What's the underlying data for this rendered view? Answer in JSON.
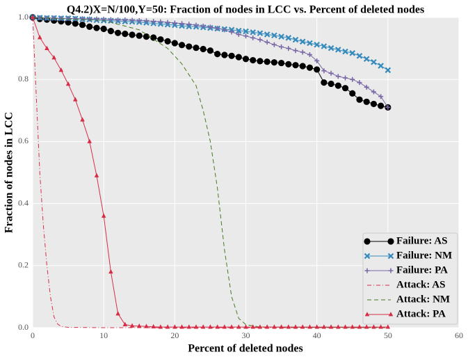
{
  "chart_data": {
    "type": "line",
    "title": "Q4.2)X=N/100,Y=50: Fraction of nodes in LCC vs. Percent of deleted nodes",
    "x_label": "Percent of deleted nodes",
    "y_label": "Fraction of nodes in LCC",
    "xlim": [
      0,
      60
    ],
    "xticks": [
      0,
      10,
      20,
      30,
      40,
      50,
      60
    ],
    "ylim": [
      0,
      1
    ],
    "yticks": [
      {
        "value": 0,
        "label": "0.0"
      },
      0.2,
      0.4,
      0.6,
      0.8,
      {
        "value": 1,
        "label": "1.0"
      }
    ],
    "grid": true,
    "legend_position": "lower-right",
    "series": [
      {
        "name": "Failure: AS",
        "color": "#000000",
        "marker": "circle",
        "linestyle": "solid",
        "x": [
          0,
          1,
          2,
          3,
          4,
          5,
          6,
          7,
          8,
          9,
          10,
          11,
          12,
          13,
          14,
          15,
          16,
          17,
          18,
          19,
          20,
          21,
          22,
          23,
          24,
          25,
          26,
          27,
          28,
          29,
          30,
          31,
          32,
          33,
          34,
          35,
          36,
          37,
          38,
          39,
          40,
          41,
          42,
          43,
          44,
          45,
          46,
          47,
          48,
          49,
          50
        ],
        "values": [
          1.0,
          0.995,
          0.993,
          0.99,
          0.987,
          0.984,
          0.98,
          0.976,
          0.97,
          0.966,
          0.963,
          0.956,
          0.95,
          0.947,
          0.944,
          0.941,
          0.938,
          0.935,
          0.929,
          0.923,
          0.917,
          0.911,
          0.906,
          0.902,
          0.898,
          0.893,
          0.882,
          0.879,
          0.876,
          0.872,
          0.866,
          0.862,
          0.859,
          0.857,
          0.855,
          0.853,
          0.849,
          0.846,
          0.843,
          0.838,
          0.832,
          0.79,
          0.786,
          0.78,
          0.772,
          0.755,
          0.735,
          0.728,
          0.721,
          0.715,
          0.71
        ]
      },
      {
        "name": "Failure: NM",
        "color": "#348abd",
        "marker": "x",
        "linestyle": "solid",
        "x": [
          0,
          1,
          2,
          3,
          4,
          5,
          6,
          7,
          8,
          9,
          10,
          11,
          12,
          13,
          14,
          15,
          16,
          17,
          18,
          19,
          20,
          21,
          22,
          23,
          24,
          25,
          26,
          27,
          28,
          29,
          30,
          31,
          32,
          33,
          34,
          35,
          36,
          37,
          38,
          39,
          40,
          41,
          42,
          43,
          44,
          45,
          46,
          47,
          48,
          49,
          50
        ],
        "values": [
          1.0,
          0.999,
          0.998,
          0.998,
          0.997,
          0.997,
          0.996,
          0.994,
          0.993,
          0.991,
          0.99,
          0.989,
          0.988,
          0.987,
          0.986,
          0.985,
          0.983,
          0.981,
          0.979,
          0.977,
          0.975,
          0.973,
          0.971,
          0.97,
          0.968,
          0.966,
          0.964,
          0.962,
          0.96,
          0.957,
          0.955,
          0.952,
          0.949,
          0.945,
          0.942,
          0.938,
          0.934,
          0.928,
          0.922,
          0.917,
          0.912,
          0.907,
          0.901,
          0.896,
          0.89,
          0.885,
          0.876,
          0.866,
          0.856,
          0.844,
          0.83
        ]
      },
      {
        "name": "Failure: PA",
        "color": "#7a68a6",
        "marker": "plus",
        "linestyle": "solid",
        "x": [
          0,
          1,
          2,
          3,
          4,
          5,
          6,
          7,
          8,
          9,
          10,
          11,
          12,
          13,
          14,
          15,
          16,
          17,
          18,
          19,
          20,
          21,
          22,
          23,
          24,
          25,
          26,
          27,
          28,
          29,
          30,
          31,
          32,
          33,
          34,
          35,
          36,
          37,
          38,
          39,
          40,
          41,
          42,
          43,
          44,
          45,
          46,
          47,
          48,
          49,
          50
        ],
        "values": [
          1.0,
          0.999,
          0.998,
          0.998,
          0.997,
          0.997,
          0.996,
          0.996,
          0.995,
          0.995,
          0.994,
          0.993,
          0.992,
          0.992,
          0.991,
          0.99,
          0.989,
          0.987,
          0.986,
          0.984,
          0.982,
          0.98,
          0.978,
          0.975,
          0.972,
          0.969,
          0.965,
          0.96,
          0.953,
          0.945,
          0.94,
          0.934,
          0.928,
          0.92,
          0.912,
          0.905,
          0.9,
          0.893,
          0.888,
          0.88,
          0.86,
          0.828,
          0.82,
          0.81,
          0.805,
          0.8,
          0.79,
          0.775,
          0.76,
          0.745,
          0.71
        ]
      },
      {
        "name": "Attack: AS",
        "color": "#d62d47",
        "marker": "none",
        "linestyle": "dashdot",
        "x": [
          0,
          0.5,
          1,
          1.5,
          2,
          2.5,
          3,
          3.5,
          4,
          5,
          10,
          20,
          30,
          40,
          50
        ],
        "values": [
          1.0,
          0.75,
          0.5,
          0.33,
          0.2,
          0.1,
          0.035,
          0.012,
          0.004,
          0.001,
          0,
          0,
          0,
          0,
          0
        ]
      },
      {
        "name": "Attack: NM",
        "color": "#467821",
        "marker": "none",
        "linestyle": "dashed",
        "x": [
          0,
          10,
          15,
          19,
          21,
          23,
          24,
          25,
          26,
          27,
          28,
          29,
          30,
          32,
          50
        ],
        "values": [
          1.0,
          0.99,
          0.96,
          0.9,
          0.85,
          0.78,
          0.7,
          0.6,
          0.45,
          0.25,
          0.1,
          0.03,
          0.01,
          0.002,
          0
        ]
      },
      {
        "name": "Attack: PA",
        "color": "#d62d47",
        "marker": "triangle",
        "linestyle": "solid",
        "x": [
          0,
          1,
          2,
          3,
          4,
          5,
          6,
          7,
          8,
          9,
          10,
          11,
          12,
          13,
          14,
          15,
          16,
          17,
          18,
          19,
          20,
          21,
          22,
          23,
          24,
          25,
          26,
          27,
          28,
          29,
          30,
          31,
          32,
          33,
          34,
          35,
          36,
          37,
          38,
          39,
          40,
          41,
          42,
          43,
          44,
          45,
          46,
          47,
          48,
          49,
          50
        ],
        "values": [
          1.0,
          0.935,
          0.9,
          0.87,
          0.83,
          0.785,
          0.735,
          0.67,
          0.6,
          0.49,
          0.36,
          0.18,
          0.045,
          0.01,
          0.006,
          0.005,
          0.004,
          0.003,
          0.002,
          0.002,
          0.002,
          0.002,
          0.002,
          0.002,
          0.002,
          0.002,
          0.002,
          0.002,
          0.002,
          0.002,
          0.002,
          0.002,
          0.002,
          0.002,
          0.002,
          0.002,
          0.002,
          0.002,
          0.002,
          0.002,
          0.002,
          0.002,
          0.002,
          0.002,
          0.002,
          0.002,
          0.002,
          0.002,
          0.002,
          0.002,
          0.002
        ]
      }
    ]
  }
}
